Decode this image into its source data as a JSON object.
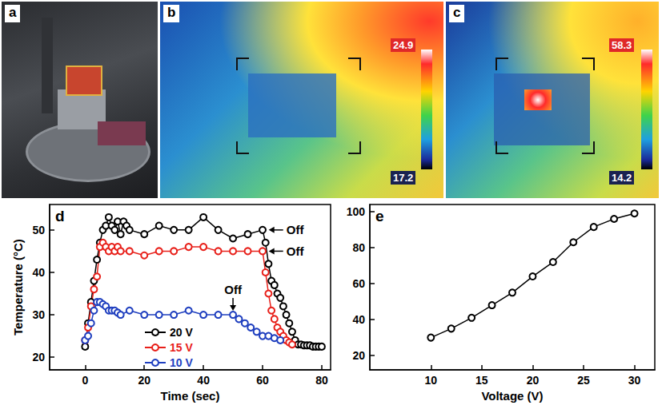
{
  "images": [
    {
      "panel": "a"
    },
    {
      "panel": "b",
      "colorbar": {
        "max": 24.9,
        "min": 17.2
      }
    },
    {
      "panel": "c",
      "colorbar": {
        "max": 58.3,
        "min": 14.2
      }
    }
  ],
  "chart_data": [
    {
      "panel": "d",
      "type": "line",
      "xlabel": "Time (sec)",
      "ylabel": "Temperature (°C)",
      "xlim": [
        -12,
        83
      ],
      "xticks": [
        0,
        20,
        40,
        60,
        80
      ],
      "ylim": [
        17,
        56
      ],
      "yticks": [
        20,
        30,
        40,
        50
      ],
      "grid": false,
      "legend": "lower center",
      "marker": "open circle",
      "line_style": "solid",
      "series": [
        {
          "name": "20 V",
          "color": "#000000",
          "x": [
            0,
            1,
            2,
            3,
            4,
            5,
            6,
            7,
            8,
            9,
            10,
            11,
            12,
            13,
            14,
            15,
            20,
            25,
            30,
            35,
            40,
            45,
            50,
            55,
            60,
            61,
            62,
            63,
            64,
            65,
            66,
            67,
            68,
            69,
            70,
            71,
            72,
            73,
            74,
            75,
            76,
            77,
            78,
            79,
            80
          ],
          "values": [
            22.5,
            28,
            33,
            38,
            43,
            47,
            50,
            51,
            53,
            51,
            50,
            52,
            49,
            52,
            51,
            50,
            49,
            51,
            50,
            50,
            53,
            50,
            48,
            49,
            50,
            47,
            42,
            38,
            37,
            35,
            34,
            32,
            30,
            28,
            26,
            24,
            23,
            23,
            22.8,
            22.8,
            22.8,
            22.5,
            22.5,
            22.5,
            22.5
          ]
        },
        {
          "name": "15 V",
          "color": "#e8201a",
          "x": [
            0,
            1,
            2,
            3,
            4,
            5,
            6,
            7,
            8,
            9,
            10,
            11,
            12,
            15,
            20,
            25,
            30,
            35,
            40,
            45,
            50,
            55,
            60,
            61,
            62,
            63,
            64,
            65,
            66,
            67,
            68,
            69,
            70
          ],
          "values": [
            24,
            27,
            32,
            36,
            39,
            46,
            47,
            46,
            45,
            46,
            45,
            46,
            45,
            45,
            44,
            45,
            45,
            46,
            46,
            45,
            45,
            45,
            45,
            40,
            35,
            31,
            29,
            27,
            26,
            25,
            24,
            23.5,
            23
          ]
        },
        {
          "name": "10 V",
          "color": "#1f3fbf",
          "x": [
            0,
            1,
            2,
            3,
            4,
            5,
            6,
            7,
            8,
            9,
            10,
            11,
            12,
            15,
            20,
            25,
            30,
            35,
            40,
            45,
            50,
            52,
            54,
            56,
            58,
            60,
            62,
            64,
            66
          ],
          "values": [
            24,
            25,
            28,
            31,
            33,
            33,
            32.5,
            32,
            31,
            31,
            31,
            30.5,
            30,
            31,
            30,
            30,
            30,
            31,
            30,
            30,
            30,
            29,
            28,
            27,
            26,
            25,
            25,
            24.5,
            24
          ]
        }
      ],
      "annotations": [
        {
          "text": "Off",
          "x": 61,
          "y": 50
        },
        {
          "text": "Off",
          "x": 61,
          "y": 45
        },
        {
          "text": "Off",
          "x": 50,
          "y": 30
        }
      ]
    },
    {
      "panel": "e",
      "type": "line",
      "xlabel": "Voltage (V)",
      "xlim": [
        4,
        32
      ],
      "xticks": [
        10,
        15,
        20,
        25,
        30
      ],
      "ylim": [
        12,
        104
      ],
      "yticks": [
        20,
        40,
        60,
        80,
        100
      ],
      "grid": false,
      "color": "#000000",
      "marker": "open circle",
      "line_style": "solid",
      "x": [
        10,
        12,
        14,
        16,
        18,
        20,
        22,
        24,
        26,
        28,
        30
      ],
      "values": [
        30,
        35,
        41,
        48,
        55,
        64,
        72,
        83,
        91.5,
        96,
        99
      ]
    }
  ]
}
